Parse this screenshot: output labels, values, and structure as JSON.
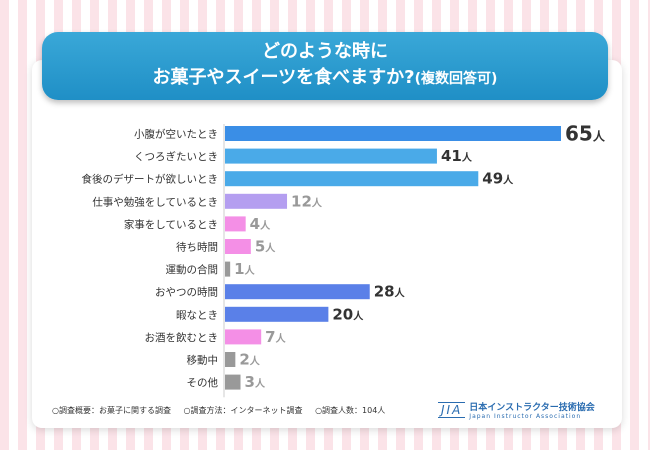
{
  "title": {
    "line1": "どのような時に",
    "line2_main": "お菓子やスイーツを食べますか?",
    "line2_sub": "(複数回答可)"
  },
  "chart_data": {
    "type": "bar",
    "orientation": "horizontal",
    "unit": "人",
    "categories": [
      "小腹が空いたとき",
      "くつろぎたいとき",
      "食後のデザートが欲しいとき",
      "仕事や勉強をしているとき",
      "家事をしているとき",
      "待ち時間",
      "運動の合間",
      "おやつの時間",
      "暇なとき",
      "お酒を飲むとき",
      "移動中",
      "その他"
    ],
    "values": [
      65,
      41,
      49,
      12,
      4,
      5,
      1,
      28,
      20,
      7,
      2,
      3
    ],
    "colors": [
      "#3a8ee6",
      "#4aaae8",
      "#4aaae8",
      "#b49ef0",
      "#f48fe6",
      "#f48fe6",
      "#999999",
      "#5a80e8",
      "#5a80e8",
      "#f48fe6",
      "#999999",
      "#999999"
    ],
    "label_colors": [
      "#333333",
      "#333333",
      "#333333",
      "#999999",
      "#999999",
      "#999999",
      "#999999",
      "#333333",
      "#333333",
      "#999999",
      "#999999",
      "#999999"
    ],
    "xlim": [
      0,
      65
    ]
  },
  "footer": {
    "summary": "○調査概要：お菓子に関する調査",
    "method": "○調査方法：インターネット調査",
    "count": "○調査人数：104人"
  },
  "logo": {
    "mark": "JIA",
    "name_jp": "日本インストラクター技術協会",
    "name_en": "Japan Instructor Association"
  }
}
